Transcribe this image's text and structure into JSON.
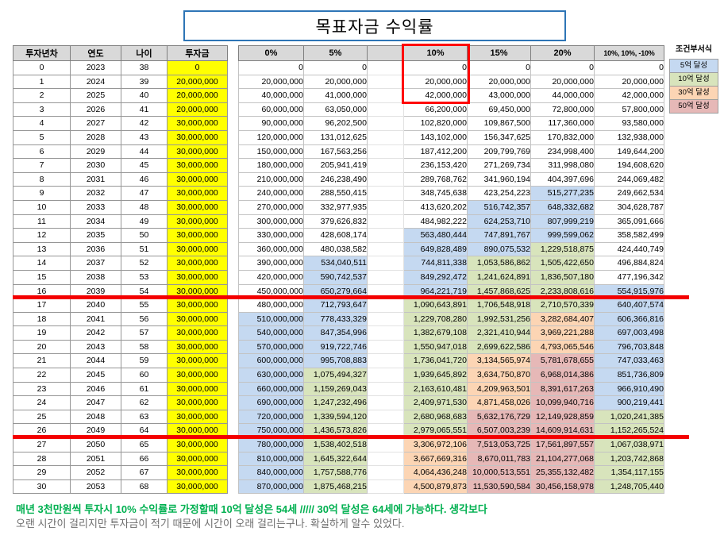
{
  "title": "목표자금 수익률",
  "legend": {
    "header": "조건부서식",
    "items": [
      {
        "label": "5억 달성",
        "color": "#c5d9f1"
      },
      {
        "label": "10억 달성",
        "color": "#d8e4bc"
      },
      {
        "label": "30억 달성",
        "color": "#fcd5b4"
      },
      {
        "label": "50억 달성",
        "color": "#e6b8b7"
      }
    ]
  },
  "table": {
    "headers": [
      "투자년차",
      "연도",
      "나이",
      "투자금",
      "0%",
      "5%",
      "10%",
      "15%",
      "20%",
      "10%, 10%, -10%"
    ],
    "rows": [
      [
        0,
        2023,
        38,
        0,
        0,
        0,
        0,
        0,
        0,
        0
      ],
      [
        1,
        2024,
        39,
        20000000,
        20000000,
        20000000,
        20000000,
        20000000,
        20000000,
        20000000
      ],
      [
        2,
        2025,
        40,
        20000000,
        40000000,
        41000000,
        42000000,
        43000000,
        44000000,
        42000000
      ],
      [
        3,
        2026,
        41,
        20000000,
        60000000,
        63050000,
        66200000,
        69450000,
        72800000,
        57800000
      ],
      [
        4,
        2027,
        42,
        30000000,
        90000000,
        96202500,
        102820000,
        109867500,
        117360000,
        93580000
      ],
      [
        5,
        2028,
        43,
        30000000,
        120000000,
        131012625,
        143102000,
        156347625,
        170832000,
        132938000
      ],
      [
        6,
        2029,
        44,
        30000000,
        150000000,
        167563256,
        187412200,
        209799769,
        234998400,
        149644200
      ],
      [
        7,
        2030,
        45,
        30000000,
        180000000,
        205941419,
        236153420,
        271269734,
        311998080,
        194608620
      ],
      [
        8,
        2031,
        46,
        30000000,
        210000000,
        246238490,
        289768762,
        341960194,
        404397696,
        244069482
      ],
      [
        9,
        2032,
        47,
        30000000,
        240000000,
        288550415,
        348745638,
        423254223,
        515277235,
        249662534
      ],
      [
        10,
        2033,
        48,
        30000000,
        270000000,
        332977935,
        413620202,
        516742357,
        648332682,
        304628787
      ],
      [
        11,
        2034,
        49,
        30000000,
        300000000,
        379626832,
        484982222,
        624253710,
        807999219,
        365091666
      ],
      [
        12,
        2035,
        50,
        30000000,
        330000000,
        428608174,
        563480444,
        747891767,
        999599062,
        358582499
      ],
      [
        13,
        2036,
        51,
        30000000,
        360000000,
        480038582,
        649828489,
        890075532,
        1229518875,
        424440749
      ],
      [
        14,
        2037,
        52,
        30000000,
        390000000,
        534040511,
        744811338,
        1053586862,
        1505422650,
        496884824
      ],
      [
        15,
        2038,
        53,
        30000000,
        420000000,
        590742537,
        849292472,
        1241624891,
        1836507180,
        477196342
      ],
      [
        16,
        2039,
        54,
        30000000,
        450000000,
        650279664,
        964221719,
        1457868625,
        2233808616,
        554915976
      ],
      [
        17,
        2040,
        55,
        30000000,
        480000000,
        712793647,
        1090643891,
        1706548918,
        2710570339,
        640407574
      ],
      [
        18,
        2041,
        56,
        30000000,
        510000000,
        778433329,
        1229708280,
        1992531256,
        3282684407,
        606366816
      ],
      [
        19,
        2042,
        57,
        30000000,
        540000000,
        847354996,
        1382679108,
        2321410944,
        3969221288,
        697003498
      ],
      [
        20,
        2043,
        58,
        30000000,
        570000000,
        919722746,
        1550947018,
        2699622586,
        4793065546,
        796703848
      ],
      [
        21,
        2044,
        59,
        30000000,
        600000000,
        995708883,
        1736041720,
        3134565974,
        5781678655,
        747033463
      ],
      [
        22,
        2045,
        60,
        30000000,
        630000000,
        1075494327,
        1939645892,
        3634750870,
        6968014386,
        851736809
      ],
      [
        23,
        2046,
        61,
        30000000,
        660000000,
        1159269043,
        2163610481,
        4209963501,
        8391617263,
        966910490
      ],
      [
        24,
        2047,
        62,
        30000000,
        690000000,
        1247232496,
        2409971530,
        4871458026,
        10099940716,
        900219441
      ],
      [
        25,
        2048,
        63,
        30000000,
        720000000,
        1339594120,
        2680968683,
        5632176729,
        12149928859,
        1020241385
      ],
      [
        26,
        2049,
        64,
        30000000,
        750000000,
        1436573826,
        2979065551,
        6507003239,
        14609914631,
        1152265524
      ],
      [
        27,
        2050,
        65,
        30000000,
        780000000,
        1538402518,
        3306972106,
        7513053725,
        17561897557,
        1067038971
      ],
      [
        28,
        2051,
        66,
        30000000,
        810000000,
        1645322644,
        3667669316,
        8670011783,
        21104277068,
        1203742868
      ],
      [
        29,
        2052,
        67,
        30000000,
        840000000,
        1757588776,
        4064436248,
        10000513551,
        25355132482,
        1354117155
      ],
      [
        30,
        2053,
        68,
        30000000,
        870000000,
        1875468215,
        4500879873,
        11530590584,
        30456158978,
        1248705440
      ]
    ]
  },
  "conditional_format_thresholds": [
    {
      "min": 5000000000,
      "color": "#e6b8b7"
    },
    {
      "min": 3000000000,
      "color": "#fcd5b4"
    },
    {
      "min": 1000000000,
      "color": "#d8e4bc"
    },
    {
      "min": 500000000,
      "color": "#c5d9f1"
    }
  ],
  "annotations": {
    "boxed_column": "10%",
    "red_lines_below_ages": [
      54,
      64
    ]
  },
  "footer": {
    "line1": "매년 3천만원씩 투자시 10% 수익률로 가정할때 10억 달성은 54세 ///// 30억 달성은 64세에 가능하다. 생각보다",
    "line2": "오랜 시간이 걸리지만 투자금이 적기 때문에 시간이 오래 걸리는구나. 확실하게 알수 있었다."
  }
}
